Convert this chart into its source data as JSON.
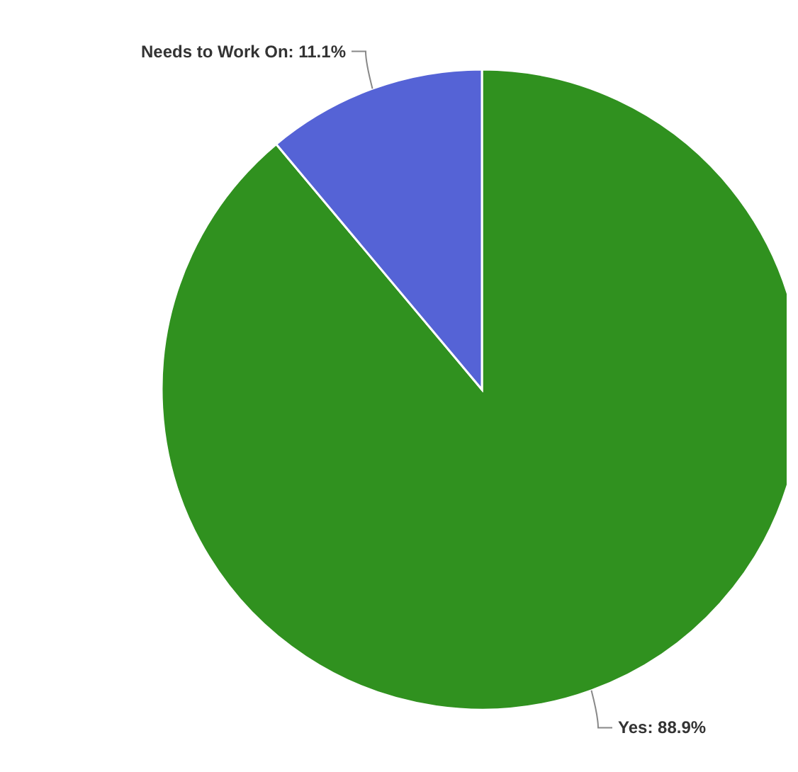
{
  "chart_data": {
    "type": "pie",
    "categories": [
      "Yes",
      "Needs to Work On"
    ],
    "values": [
      88.9,
      11.1
    ],
    "colors": [
      "#30911f",
      "#5563d6"
    ],
    "value_labels": [
      "88.9%",
      "11.1%"
    ]
  }
}
